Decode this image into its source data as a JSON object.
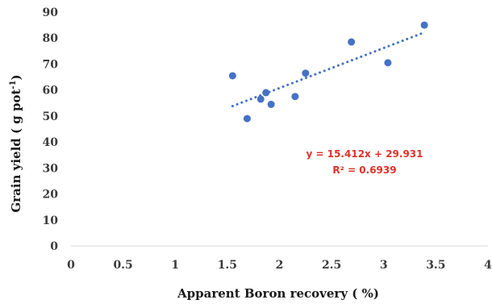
{
  "chart_data": {
    "type": "scatter",
    "title": "",
    "xlabel": "Apparent Boron recovery ( %)",
    "ylabel_main": "Grain yield ( g pot",
    "ylabel_sup": "-1",
    "ylabel_end": ")",
    "xlim": [
      0,
      4
    ],
    "ylim": [
      0,
      90
    ],
    "x_ticks": [
      0,
      0.5,
      1,
      1.5,
      2,
      2.5,
      3,
      3.5,
      4
    ],
    "x_tick_labels": [
      "0",
      "0.5",
      "1",
      "1.5",
      "2",
      "2.5",
      "3",
      "3.5",
      "4"
    ],
    "y_ticks": [
      0,
      10,
      20,
      30,
      40,
      50,
      60,
      70,
      80,
      90
    ],
    "y_tick_labels": [
      "0",
      "10",
      "20",
      "30",
      "40",
      "50",
      "60",
      "70",
      "80",
      "90"
    ],
    "points": [
      {
        "x": 1.55,
        "y": 65.5
      },
      {
        "x": 1.69,
        "y": 49.0
      },
      {
        "x": 1.82,
        "y": 56.5
      },
      {
        "x": 1.87,
        "y": 59.0
      },
      {
        "x": 1.92,
        "y": 54.5
      },
      {
        "x": 2.15,
        "y": 57.5
      },
      {
        "x": 2.25,
        "y": 66.5
      },
      {
        "x": 2.69,
        "y": 78.5
      },
      {
        "x": 3.04,
        "y": 70.5
      },
      {
        "x": 3.39,
        "y": 85.0
      }
    ],
    "trendline": {
      "type": "linear",
      "slope": 15.412,
      "intercept": 29.931,
      "x_range": [
        1.55,
        3.39
      ],
      "equation_text": "y = 15.412x + 29.931",
      "r2_text": "R² = 0.6939"
    },
    "grid": false,
    "legend": "none",
    "colors": {
      "points": "#4472c4",
      "trendline": "#4472c4",
      "equation": "#e0302a",
      "axis": "#d9d9d9"
    }
  }
}
